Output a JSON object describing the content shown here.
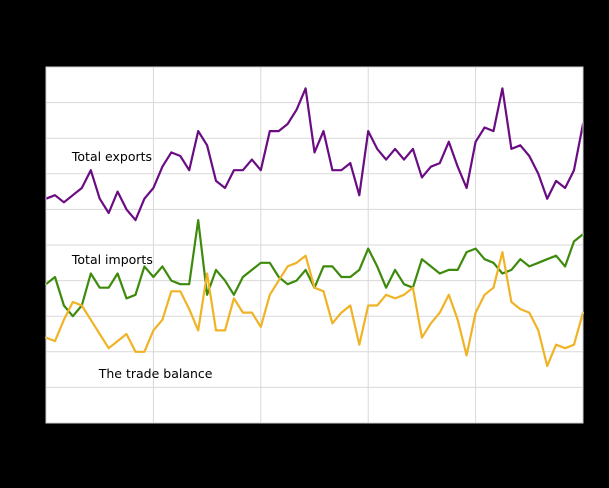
{
  "chart_data": {
    "type": "line",
    "title": "",
    "xlabel": "",
    "ylabel": "",
    "ylim": [
      0,
      10
    ],
    "xlim": [
      0,
      60
    ],
    "grid": {
      "horizontal": true,
      "vertical": true,
      "h_count": 9,
      "v_positions": [
        12,
        24,
        36,
        48
      ]
    },
    "legend": "inline labels",
    "x_note": "Monthly observations; tick labels not visible (rendered black on black). x = month index 0..60, y in gridline units.",
    "annotations": [
      {
        "text": "Total exports",
        "x": 2,
        "y": 7.5
      },
      {
        "text": "Total imports",
        "x": 2,
        "y": 4.6
      },
      {
        "text": "The trade balance",
        "x": 5,
        "y": 1.4
      }
    ],
    "series": [
      {
        "name": "Total exports",
        "color": "#6a0d83",
        "values": [
          6.3,
          6.4,
          6.2,
          6.4,
          6.6,
          7.1,
          6.3,
          5.9,
          6.5,
          6.0,
          5.7,
          6.3,
          6.6,
          7.2,
          7.6,
          7.5,
          7.1,
          8.2,
          7.8,
          6.8,
          6.6,
          7.1,
          7.1,
          7.4,
          7.1,
          8.2,
          8.2,
          8.4,
          8.8,
          9.4,
          7.6,
          8.2,
          7.1,
          7.1,
          7.3,
          6.4,
          8.2,
          7.7,
          7.4,
          7.7,
          7.4,
          7.7,
          6.9,
          7.2,
          7.3,
          7.9,
          7.2,
          6.6,
          7.9,
          8.3,
          8.2,
          9.4,
          7.7,
          7.8,
          7.5,
          7.0,
          6.3,
          6.8,
          6.6,
          7.1,
          8.4
        ]
      },
      {
        "name": "Total imports",
        "color": "#3d8a0c",
        "values": [
          3.9,
          4.1,
          3.3,
          3.0,
          3.3,
          4.2,
          3.8,
          3.8,
          4.2,
          3.5,
          3.6,
          4.4,
          4.1,
          4.4,
          4.0,
          3.9,
          3.9,
          5.7,
          3.6,
          4.3,
          4.0,
          3.6,
          4.1,
          4.3,
          4.5,
          4.5,
          4.1,
          3.9,
          4.0,
          4.3,
          3.8,
          4.4,
          4.4,
          4.1,
          4.1,
          4.3,
          4.9,
          4.4,
          3.8,
          4.3,
          3.9,
          3.8,
          4.6,
          4.4,
          4.2,
          4.3,
          4.3,
          4.8,
          4.9,
          4.6,
          4.5,
          4.2,
          4.3,
          4.6,
          4.4,
          4.5,
          4.6,
          4.7,
          4.4,
          5.1,
          5.3
        ]
      },
      {
        "name": "The trade balance",
        "color": "#f0b326",
        "values": [
          2.4,
          2.3,
          2.9,
          3.4,
          3.3,
          2.9,
          2.5,
          2.1,
          2.3,
          2.5,
          2.0,
          2.0,
          2.6,
          2.9,
          3.7,
          3.7,
          3.2,
          2.6,
          4.2,
          2.6,
          2.6,
          3.5,
          3.1,
          3.1,
          2.7,
          3.6,
          4.0,
          4.4,
          4.5,
          4.7,
          3.8,
          3.7,
          2.8,
          3.1,
          3.3,
          2.2,
          3.3,
          3.3,
          3.6,
          3.5,
          3.6,
          3.8,
          2.4,
          2.8,
          3.1,
          3.6,
          2.9,
          1.9,
          3.1,
          3.6,
          3.8,
          4.8,
          3.4,
          3.2,
          3.1,
          2.6,
          1.6,
          2.2,
          2.1,
          2.2,
          3.1
        ]
      }
    ]
  }
}
